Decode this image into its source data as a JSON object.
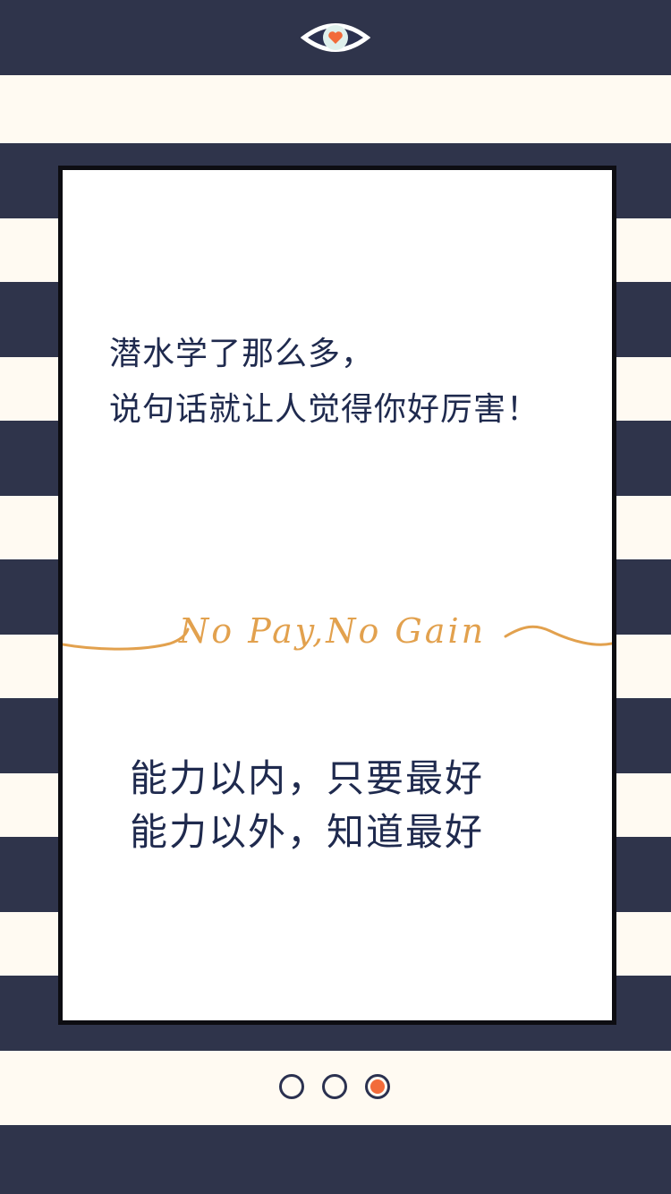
{
  "top_icon": {
    "name": "eye-heart-icon"
  },
  "card": {
    "quote_lines_1": [
      "潜水学了那么多，",
      "说句话就让人觉得你好厉害！"
    ],
    "slogan": "No Pay,No Gain",
    "quote_lines_2": [
      "能力以内，只要最好",
      "能力以外，知道最好"
    ]
  },
  "pager": {
    "count": 3,
    "active_index": 2
  },
  "colors": {
    "navy": "#2f344b",
    "cream": "#fffaf2",
    "accent_orange": "#f26b3a",
    "slogan_gold": "#e2a14e",
    "text_navy": "#1f2a4e"
  }
}
